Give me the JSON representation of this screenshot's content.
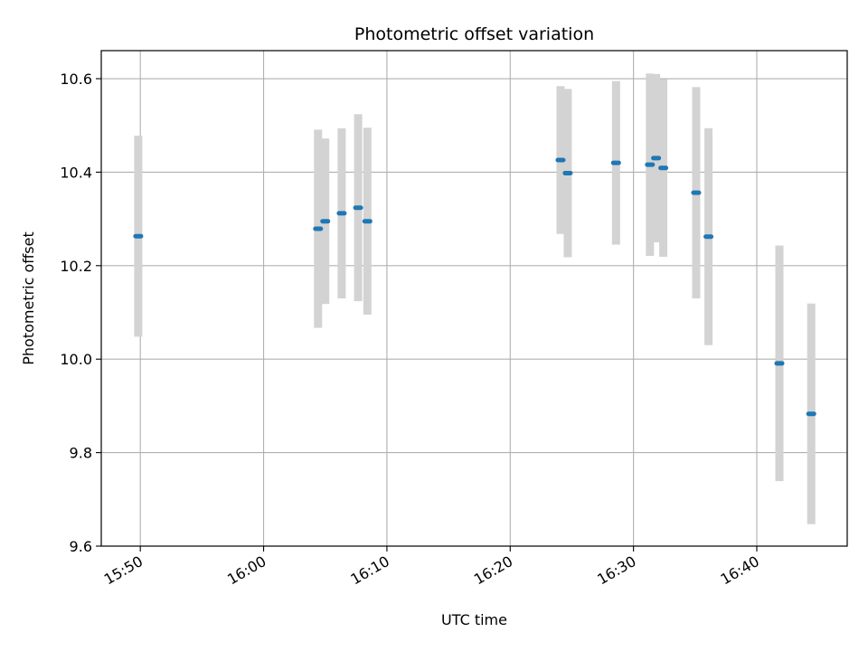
{
  "chart_data": {
    "type": "scatter",
    "title": "Photometric offset variation",
    "xlabel": "UTC time",
    "ylabel": "Photometric offset",
    "x_ticks": [
      "15:50",
      "16:00",
      "16:10",
      "16:20",
      "16:30",
      "16:40"
    ],
    "y_ticks": [
      "9.6",
      "9.8",
      "10.0",
      "10.2",
      "10.4",
      "10.6"
    ],
    "xlim": [
      "15:46:50",
      "16:47:20"
    ],
    "ylim": [
      9.6,
      10.66
    ],
    "grid": true,
    "colors": {
      "marker": "#1f77b4",
      "errorbar": "#d3d3d3",
      "grid": "#b0b0b0"
    },
    "points": [
      {
        "x": "15:49:50",
        "y": 10.263,
        "y_err": 0.215
      },
      {
        "x": "16:04:25",
        "y": 10.279,
        "y_err": 0.212
      },
      {
        "x": "16:05:00",
        "y": 10.295,
        "y_err": 0.177
      },
      {
        "x": "16:06:20",
        "y": 10.312,
        "y_err": 0.182
      },
      {
        "x": "16:07:40",
        "y": 10.324,
        "y_err": 0.2
      },
      {
        "x": "16:08:25",
        "y": 10.295,
        "y_err": 0.2
      },
      {
        "x": "16:24:05",
        "y": 10.426,
        "y_err": 0.158
      },
      {
        "x": "16:24:40",
        "y": 10.398,
        "y_err": 0.18
      },
      {
        "x": "16:28:35",
        "y": 10.42,
        "y_err": 0.175
      },
      {
        "x": "16:31:20",
        "y": 10.416,
        "y_err": 0.195
      },
      {
        "x": "16:31:50",
        "y": 10.43,
        "y_err": 0.18
      },
      {
        "x": "16:32:25",
        "y": 10.409,
        "y_err": 0.19
      },
      {
        "x": "16:35:05",
        "y": 10.356,
        "y_err": 0.226
      },
      {
        "x": "16:36:05",
        "y": 10.262,
        "y_err": 0.232
      },
      {
        "x": "16:41:50",
        "y": 9.991,
        "y_err": 0.252
      },
      {
        "x": "16:44:25",
        "y": 9.883,
        "y_err": 0.236
      }
    ]
  }
}
